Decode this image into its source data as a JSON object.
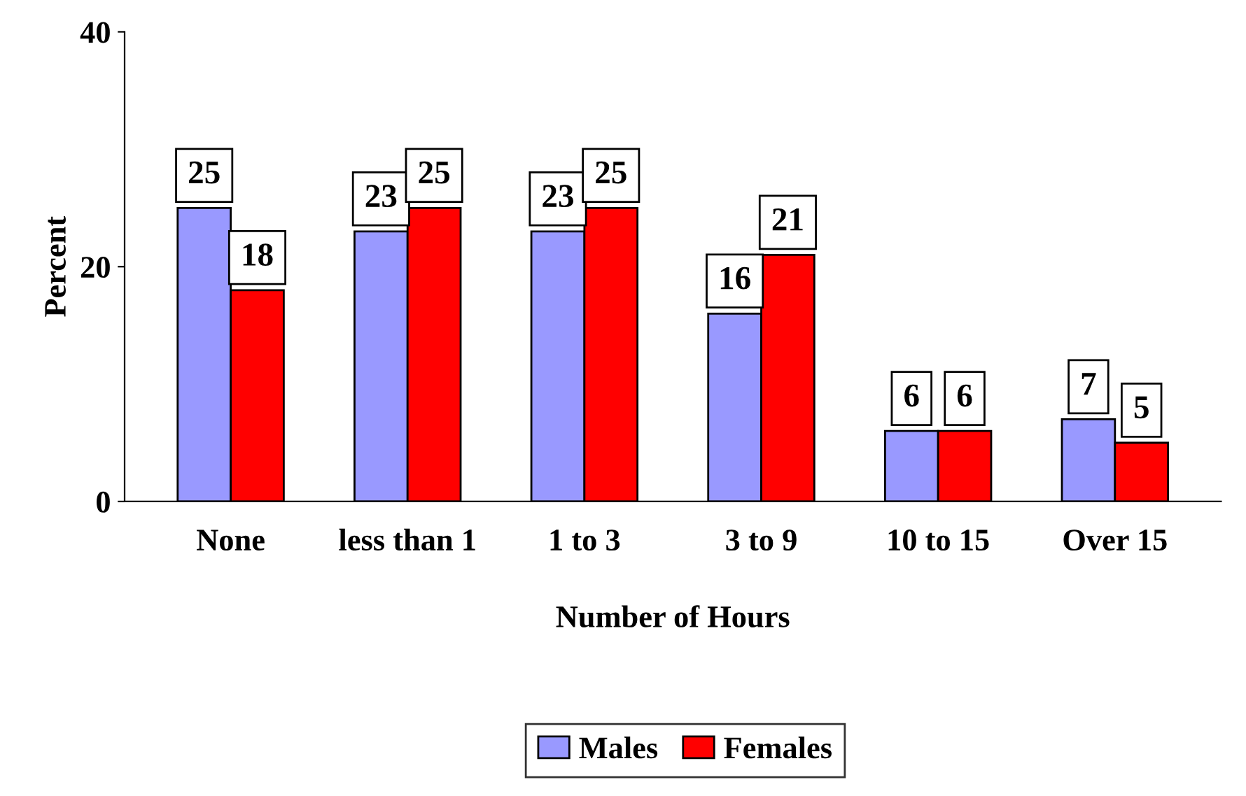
{
  "chart_data": {
    "type": "bar",
    "xlabel": "Number of Hours",
    "ylabel": "Percent",
    "categories": [
      "None",
      "less than 1",
      "1 to 3",
      "3 to 9",
      "10 to 15",
      "Over 15"
    ],
    "series": [
      {
        "name": "Males",
        "color": "#9999ff",
        "values": [
          25,
          23,
          23,
          16,
          6,
          7
        ]
      },
      {
        "name": "Females",
        "color": "#ff0000",
        "values": [
          18,
          25,
          25,
          21,
          6,
          5
        ]
      }
    ],
    "ylim": [
      0,
      40
    ],
    "yticks": [
      0,
      20,
      40
    ],
    "grid": false,
    "legend": "bottom",
    "data_labels": true
  }
}
